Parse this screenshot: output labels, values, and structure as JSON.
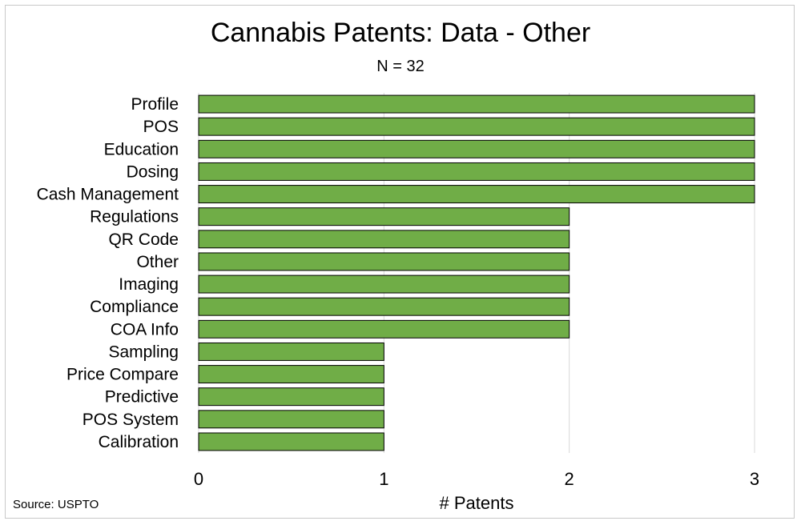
{
  "chart_data": {
    "type": "bar",
    "orientation": "horizontal",
    "title": "Cannabis Patents: Data - Other",
    "subtitle": "N = 32",
    "xlabel": "# Patents",
    "ylabel": "",
    "source": "Source: USPTO",
    "categories": [
      "Profile",
      "POS",
      "Education",
      "Dosing",
      "Cash Management",
      "Regulations",
      "QR Code",
      "Other",
      "Imaging",
      "Compliance",
      "COA Info",
      "Sampling",
      "Price Compare",
      "Predictive",
      "POS System",
      "Calibration"
    ],
    "values": [
      3,
      3,
      3,
      3,
      3,
      2,
      2,
      2,
      2,
      2,
      2,
      1,
      1,
      1,
      1,
      1
    ],
    "xlim": [
      0,
      3
    ],
    "xticks": [
      0,
      1,
      2,
      3
    ],
    "grid": true,
    "bar_color": "#70ad47",
    "bar_edge_color": "#000000",
    "grid_color": "#d9d9d9"
  }
}
